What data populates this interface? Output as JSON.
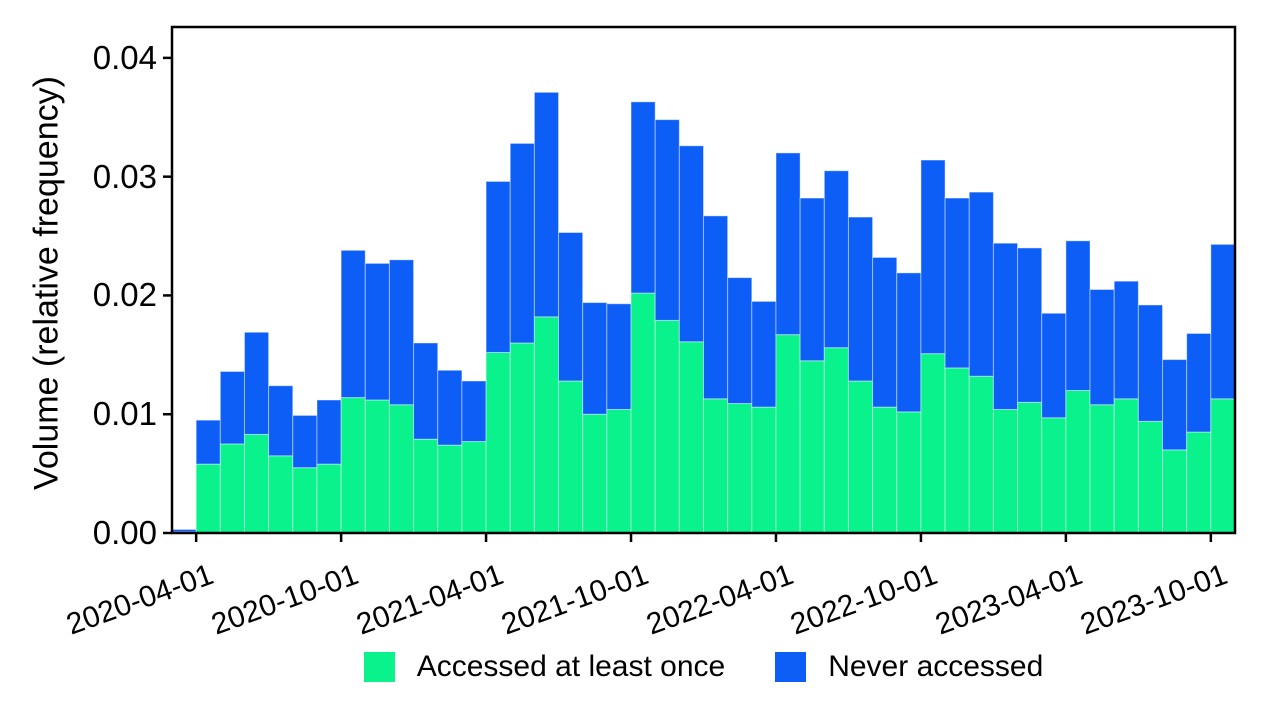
{
  "chart_data": {
    "type": "bar",
    "stacked": true,
    "title": "",
    "xlabel": "",
    "ylabel": "Volume (relative frequency)",
    "legend_position": "bottom-center",
    "grid": false,
    "ylim": [
      0,
      0.0426
    ],
    "y_tick_values": [
      0,
      0.01,
      0.02,
      0.03,
      0.04
    ],
    "y_tick_labels": [
      "0.00",
      "0.01",
      "0.02",
      "0.03",
      "0.04"
    ],
    "x": [
      "2020-03",
      "2020-04",
      "2020-05",
      "2020-06",
      "2020-07",
      "2020-08",
      "2020-09",
      "2020-10",
      "2020-11",
      "2020-12",
      "2021-01",
      "2021-02",
      "2021-03",
      "2021-04",
      "2021-05",
      "2021-06",
      "2021-07",
      "2021-08",
      "2021-09",
      "2021-10",
      "2021-11",
      "2021-12",
      "2022-01",
      "2022-02",
      "2022-03",
      "2022-04",
      "2022-05",
      "2022-06",
      "2022-07",
      "2022-08",
      "2022-09",
      "2022-10",
      "2022-11",
      "2022-12",
      "2023-01",
      "2023-02",
      "2023-03",
      "2023-04",
      "2023-05",
      "2023-06",
      "2023-07",
      "2023-08",
      "2023-09",
      "2023-10"
    ],
    "x_tick_labels": [
      "2020-04-01",
      "2020-10-01",
      "2021-04-01",
      "2021-10-01",
      "2022-04-01",
      "2022-10-01",
      "2023-04-01",
      "2023-10-01"
    ],
    "x_tick_month_index": [
      1,
      7,
      13,
      19,
      25,
      31,
      37,
      43
    ],
    "series": [
      {
        "name": "Accessed at least once",
        "color": "#0af28c",
        "edge_color": "rgba(255,255,255,0.45)",
        "values": [
          0.0001,
          0.0058,
          0.0075,
          0.0083,
          0.0065,
          0.0055,
          0.0058,
          0.0114,
          0.0112,
          0.0108,
          0.0079,
          0.0074,
          0.0077,
          0.0152,
          0.016,
          0.0182,
          0.0128,
          0.01,
          0.0104,
          0.0202,
          0.0179,
          0.0161,
          0.0113,
          0.0109,
          0.0106,
          0.0167,
          0.0145,
          0.0156,
          0.0128,
          0.0106,
          0.0102,
          0.0151,
          0.0139,
          0.0132,
          0.0104,
          0.011,
          0.0097,
          0.012,
          0.0108,
          0.0113,
          0.0094,
          0.007,
          0.0085,
          0.0113
        ]
      },
      {
        "name": "Never accessed",
        "color": "#0d5ef6",
        "edge_color": "rgba(255,255,255,0.45)",
        "values": [
          0.0002,
          0.0037,
          0.0061,
          0.0086,
          0.0059,
          0.0044,
          0.0054,
          0.0124,
          0.0115,
          0.0122,
          0.0081,
          0.0063,
          0.0051,
          0.0144,
          0.0168,
          0.0189,
          0.0125,
          0.0094,
          0.0089,
          0.0161,
          0.0169,
          0.0165,
          0.0154,
          0.0106,
          0.0089,
          0.0153,
          0.0137,
          0.0149,
          0.0138,
          0.0126,
          0.0117,
          0.0163,
          0.0143,
          0.0155,
          0.014,
          0.013,
          0.0088,
          0.0126,
          0.0097,
          0.0099,
          0.0098,
          0.0076,
          0.0083,
          0.013
        ]
      }
    ],
    "axis_color": "#000000",
    "background_color": "#ffffff"
  }
}
